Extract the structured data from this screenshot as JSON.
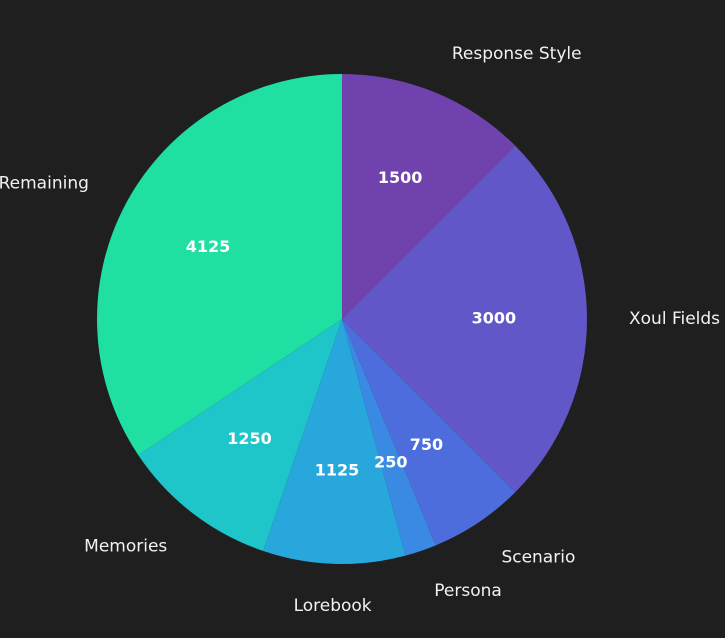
{
  "chart_data": {
    "type": "pie",
    "categories": [
      "Response Style",
      "Xoul Fields",
      "Scenario",
      "Persona",
      "Lorebook",
      "Memories",
      "Remaining"
    ],
    "values": [
      1500,
      3000,
      750,
      250,
      1125,
      1250,
      4125
    ],
    "colors": [
      "#6f42ad",
      "#6257c9",
      "#4d6ddd",
      "#3a8ae4",
      "#27a7dc",
      "#1ec5c9",
      "#1fdfa2"
    ],
    "background": "#1f1f1f",
    "start_angle": "12 o'clock",
    "direction": "clockwise"
  }
}
